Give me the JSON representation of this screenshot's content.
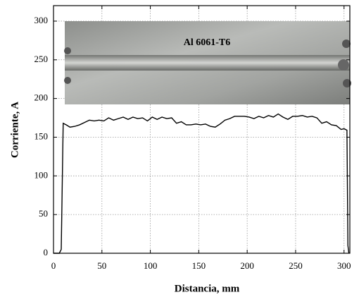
{
  "chart_data": {
    "type": "line",
    "image_label": "Al 6061-T6",
    "x_label": "Distancia, mm",
    "y_label": "Corriente, A",
    "xlim": [
      0,
      306
    ],
    "ylim": [
      0,
      320
    ],
    "xticks": [
      0,
      50,
      100,
      150,
      200,
      250,
      300
    ],
    "yticks": [
      0,
      50,
      100,
      150,
      200,
      250,
      300
    ],
    "grid": true,
    "series": [
      {
        "color": "#000000",
        "x": [
          0,
          6,
          8,
          10,
          13,
          17,
          22,
          27,
          32,
          37,
          42,
          47,
          52,
          57,
          62,
          67,
          72,
          77,
          82,
          87,
          92,
          97,
          102,
          107,
          112,
          117,
          122,
          127,
          132,
          137,
          142,
          147,
          152,
          157,
          162,
          167,
          172,
          177,
          182,
          187,
          192,
          197,
          202,
          207,
          212,
          217,
          222,
          227,
          232,
          237,
          242,
          247,
          252,
          257,
          262,
          267,
          272,
          277,
          282,
          287,
          292,
          297,
          300,
          303,
          304,
          305
        ],
        "values": [
          0,
          0,
          5,
          168,
          166,
          163,
          164,
          166,
          169,
          172,
          171,
          172,
          171,
          175,
          172,
          174,
          176,
          173,
          176,
          174,
          175,
          171,
          176,
          173,
          176,
          174,
          175,
          168,
          170,
          166,
          166,
          167,
          166,
          167,
          164,
          163,
          167,
          172,
          174,
          177,
          177,
          177,
          176,
          174,
          177,
          175,
          178,
          176,
          180,
          176,
          173,
          177,
          177,
          178,
          176,
          177,
          175,
          168,
          170,
          166,
          165,
          160,
          161,
          159,
          10,
          0
        ]
      }
    ]
  }
}
